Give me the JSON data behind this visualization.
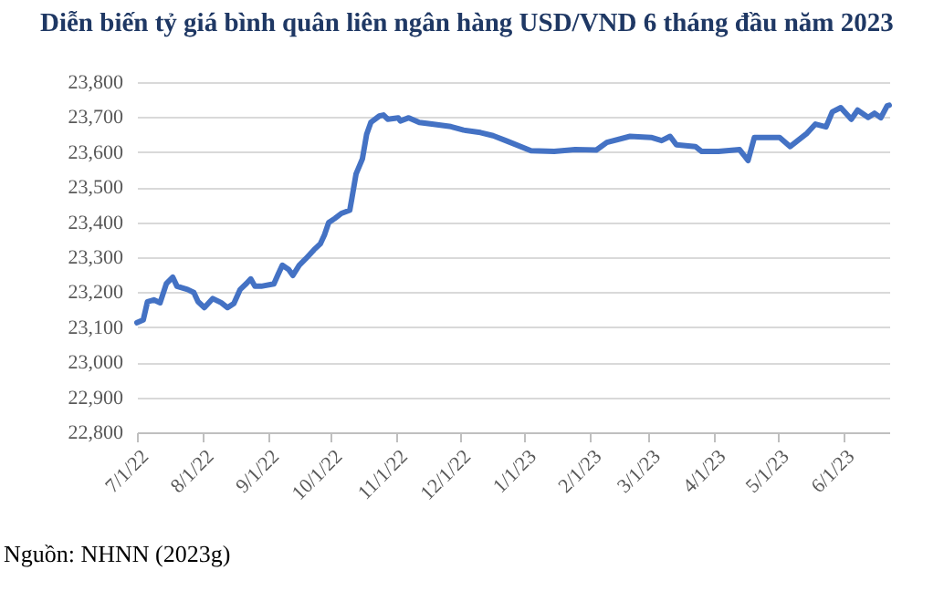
{
  "chart_data": {
    "type": "line",
    "title": "Diễn biến tỷ giá bình quân liên ngân hàng USD/VND 6 tháng đầu năm 2023",
    "annotations": [
      "Nguồn: NHNN (2023g)"
    ],
    "x": [
      "2022-07-01",
      "2022-07-04",
      "2022-07-06",
      "2022-07-09",
      "2022-07-12",
      "2022-07-15",
      "2022-07-18",
      "2022-07-20",
      "2022-07-25",
      "2022-07-28",
      "2022-07-30",
      "2022-08-02",
      "2022-08-06",
      "2022-08-10",
      "2022-08-13",
      "2022-08-16",
      "2022-08-19",
      "2022-08-22",
      "2022-08-24",
      "2022-08-26",
      "2022-08-29",
      "2022-09-04",
      "2022-09-06",
      "2022-09-08",
      "2022-09-11",
      "2022-09-13",
      "2022-09-16",
      "2022-09-19",
      "2022-09-23",
      "2022-09-26",
      "2022-09-28",
      "2022-09-30",
      "2022-10-03",
      "2022-10-06",
      "2022-10-10",
      "2022-10-11",
      "2022-10-13",
      "2022-10-16",
      "2022-10-18",
      "2022-10-20",
      "2022-10-24",
      "2022-10-26",
      "2022-10-28",
      "2022-11-02",
      "2022-11-03",
      "2022-11-07",
      "2022-11-12",
      "2022-11-18",
      "2022-11-27",
      "2022-12-03",
      "2022-12-11",
      "2022-12-17",
      "2022-12-23",
      "2023-01-04",
      "2023-01-15",
      "2023-01-25",
      "2023-02-04",
      "2023-02-09",
      "2023-02-20",
      "2023-03-02",
      "2023-03-07",
      "2023-03-11",
      "2023-03-14",
      "2023-03-23",
      "2023-03-26",
      "2023-04-03",
      "2023-04-13",
      "2023-04-17",
      "2023-04-20",
      "2023-05-02",
      "2023-05-07",
      "2023-05-15",
      "2023-05-19",
      "2023-05-24",
      "2023-05-27",
      "2023-05-31",
      "2023-06-05",
      "2023-06-08",
      "2023-06-13",
      "2023-06-16",
      "2023-06-19",
      "2023-06-22",
      "2023-06-23"
    ],
    "series": [
      {
        "color": "#4472c4",
        "values": [
          23113,
          23121,
          23173,
          23178,
          23170,
          23225,
          23243,
          23217,
          23208,
          23199,
          23173,
          23156,
          23182,
          23170,
          23156,
          23168,
          23208,
          23225,
          23238,
          23217,
          23217,
          23224,
          23251,
          23277,
          23265,
          23248,
          23277,
          23295,
          23321,
          23338,
          23364,
          23399,
          23411,
          23425,
          23434,
          23468,
          23538,
          23581,
          23651,
          23685,
          23703,
          23706,
          23694,
          23698,
          23689,
          23698,
          23685,
          23680,
          23673,
          23663,
          23656,
          23647,
          23633,
          23604,
          23602,
          23607,
          23606,
          23628,
          23645,
          23642,
          23633,
          23645,
          23621,
          23616,
          23602,
          23602,
          23607,
          23576,
          23642,
          23642,
          23616,
          23654,
          23680,
          23672,
          23715,
          23727,
          23694,
          23720,
          23699,
          23711,
          23698,
          23732,
          23734
        ]
      }
    ],
    "xlim": [
      "2022-07-01",
      "2023-06-23"
    ],
    "xticks": [
      {
        "value": "2022-07-01",
        "label": "7/1/22"
      },
      {
        "value": "2022-08-01",
        "label": "8/1/22"
      },
      {
        "value": "2022-09-01",
        "label": "9/1/22"
      },
      {
        "value": "2022-10-01",
        "label": "10/1/22"
      },
      {
        "value": "2022-11-01",
        "label": "11/1/22"
      },
      {
        "value": "2022-12-01",
        "label": "12/1/22"
      },
      {
        "value": "2023-01-01",
        "label": "1/1/23"
      },
      {
        "value": "2023-02-01",
        "label": "2/1/23"
      },
      {
        "value": "2023-03-01",
        "label": "3/1/23"
      },
      {
        "value": "2023-04-01",
        "label": "4/1/23"
      },
      {
        "value": "2023-05-01",
        "label": "5/1/23"
      },
      {
        "value": "2023-06-01",
        "label": "6/1/23"
      }
    ],
    "ylim": [
      22800,
      23800
    ],
    "yticks": [
      {
        "value": 22800,
        "label": "22,800"
      },
      {
        "value": 22900,
        "label": "22,900"
      },
      {
        "value": 23000,
        "label": "23,000"
      },
      {
        "value": 23100,
        "label": "23,100"
      },
      {
        "value": 23200,
        "label": "23,200"
      },
      {
        "value": 23300,
        "label": "23,300"
      },
      {
        "value": 23400,
        "label": "23,400"
      },
      {
        "value": 23500,
        "label": "23,500"
      },
      {
        "value": 23600,
        "label": "23,600"
      },
      {
        "value": 23700,
        "label": "23,700"
      },
      {
        "value": 23800,
        "label": "23,800"
      }
    ],
    "grid": "y",
    "marker": "none",
    "line_style": "solid"
  }
}
